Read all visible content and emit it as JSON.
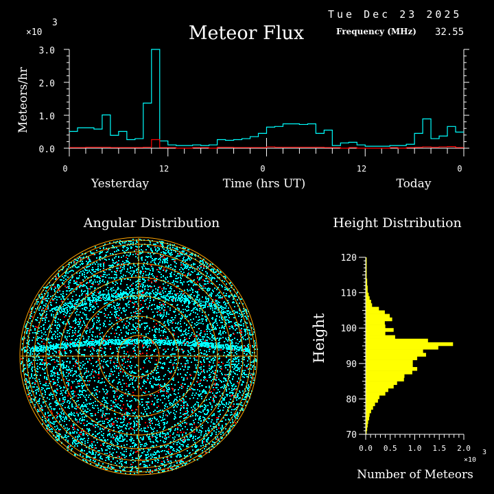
{
  "header": {
    "title": "Meteor Flux",
    "date": "Tue Dec 23 2025",
    "frequency_label": "Frequency (MHz)",
    "frequency_value": "32.55"
  },
  "colors": {
    "background": "#000000",
    "axes": "#ffffff",
    "total": "#00ffff",
    "subset": "#ff0000",
    "height_bars": "#ffff00",
    "rings": "#ffa500"
  },
  "chart_data": [
    {
      "type": "line",
      "title": "Meteor Flux",
      "ylabel": "Meteors/hr",
      "xlabel": "Time (hrs UT)",
      "y_multiplier": "×10",
      "y_multiplier_exp": "3",
      "day_labels": [
        "Yesterday",
        "Today"
      ],
      "xtick_labels": [
        "0",
        "12",
        "0",
        "12",
        "0"
      ],
      "ytick_labels": [
        "0.0",
        "1.0",
        "2.0",
        "3.0"
      ],
      "ylim": [
        0,
        3.0
      ],
      "xlim_hours": [
        0,
        48
      ],
      "step": "hourly",
      "series": [
        {
          "color": "#00ffff",
          "values": [
            0.51,
            0.62,
            0.62,
            0.58,
            1.01,
            0.39,
            0.51,
            0.26,
            0.29,
            1.37,
            3.0,
            0.22,
            0.1,
            0.08,
            0.08,
            0.1,
            0.08,
            0.1,
            0.26,
            0.24,
            0.26,
            0.29,
            0.35,
            0.45,
            0.64,
            0.66,
            0.74,
            0.74,
            0.72,
            0.74,
            0.45,
            0.55,
            0.08,
            0.16,
            0.18,
            0.1,
            0.06,
            0.06,
            0.06,
            0.08,
            0.08,
            0.12,
            0.45,
            0.89,
            0.29,
            0.37,
            0.66,
            0.49
          ]
        },
        {
          "color": "#ff0000",
          "values": [
            0.02,
            0.02,
            0.03,
            0.03,
            0.03,
            0.02,
            0.02,
            0.02,
            0.02,
            0.03,
            0.26,
            0.02,
            0.02,
            0.0,
            0.0,
            0.02,
            0.02,
            0.0,
            0.03,
            0.03,
            0.02,
            0.02,
            0.02,
            0.02,
            0.04,
            0.03,
            0.03,
            0.03,
            0.03,
            0.03,
            0.03,
            0.02,
            0.02,
            0.0,
            0.02,
            0.0,
            0.0,
            0.0,
            0.0,
            0.02,
            0.0,
            0.02,
            0.03,
            0.04,
            0.03,
            0.04,
            0.05,
            0.02
          ]
        }
      ]
    },
    {
      "type": "scatter",
      "title": "Angular Distribution"
    },
    {
      "type": "bar",
      "orientation": "horizontal",
      "title": "Height Distribution",
      "ylabel": "Height",
      "xlabel": "Number of Meteors",
      "x_multiplier": "×10",
      "x_multiplier_exp": "3",
      "ytick_labels": [
        "70",
        "80",
        "90",
        "100",
        "110",
        "120"
      ],
      "xtick_labels": [
        "0.0",
        "0.5",
        "1.0",
        "1.5",
        "2.0"
      ],
      "xlim": [
        0,
        2.0
      ],
      "ylim": [
        70,
        120
      ],
      "bin_bottoms": [
        70,
        71,
        72,
        73,
        74,
        75,
        76,
        77,
        78,
        79,
        80,
        81,
        82,
        83,
        84,
        85,
        86,
        87,
        88,
        89,
        90,
        91,
        92,
        93,
        94,
        95,
        96,
        97,
        98,
        99,
        100,
        101,
        102,
        103,
        104,
        105,
        106,
        107,
        108,
        109,
        110,
        111,
        112,
        113,
        114,
        115,
        116,
        117,
        118,
        119
      ],
      "values": [
        0.02,
        0.03,
        0.04,
        0.05,
        0.07,
        0.08,
        0.11,
        0.15,
        0.19,
        0.25,
        0.28,
        0.4,
        0.46,
        0.57,
        0.64,
        0.78,
        0.79,
        0.95,
        1.05,
        0.96,
        0.96,
        1.05,
        1.23,
        1.17,
        1.48,
        1.78,
        1.27,
        0.6,
        0.4,
        0.57,
        0.4,
        0.39,
        0.54,
        0.49,
        0.39,
        0.27,
        0.13,
        0.11,
        0.08,
        0.06,
        0.04,
        0.04,
        0.03,
        0.03,
        0.02,
        0.02,
        0.02,
        0.02,
        0.02,
        0.02
      ],
      "color": "#ffff00"
    }
  ]
}
